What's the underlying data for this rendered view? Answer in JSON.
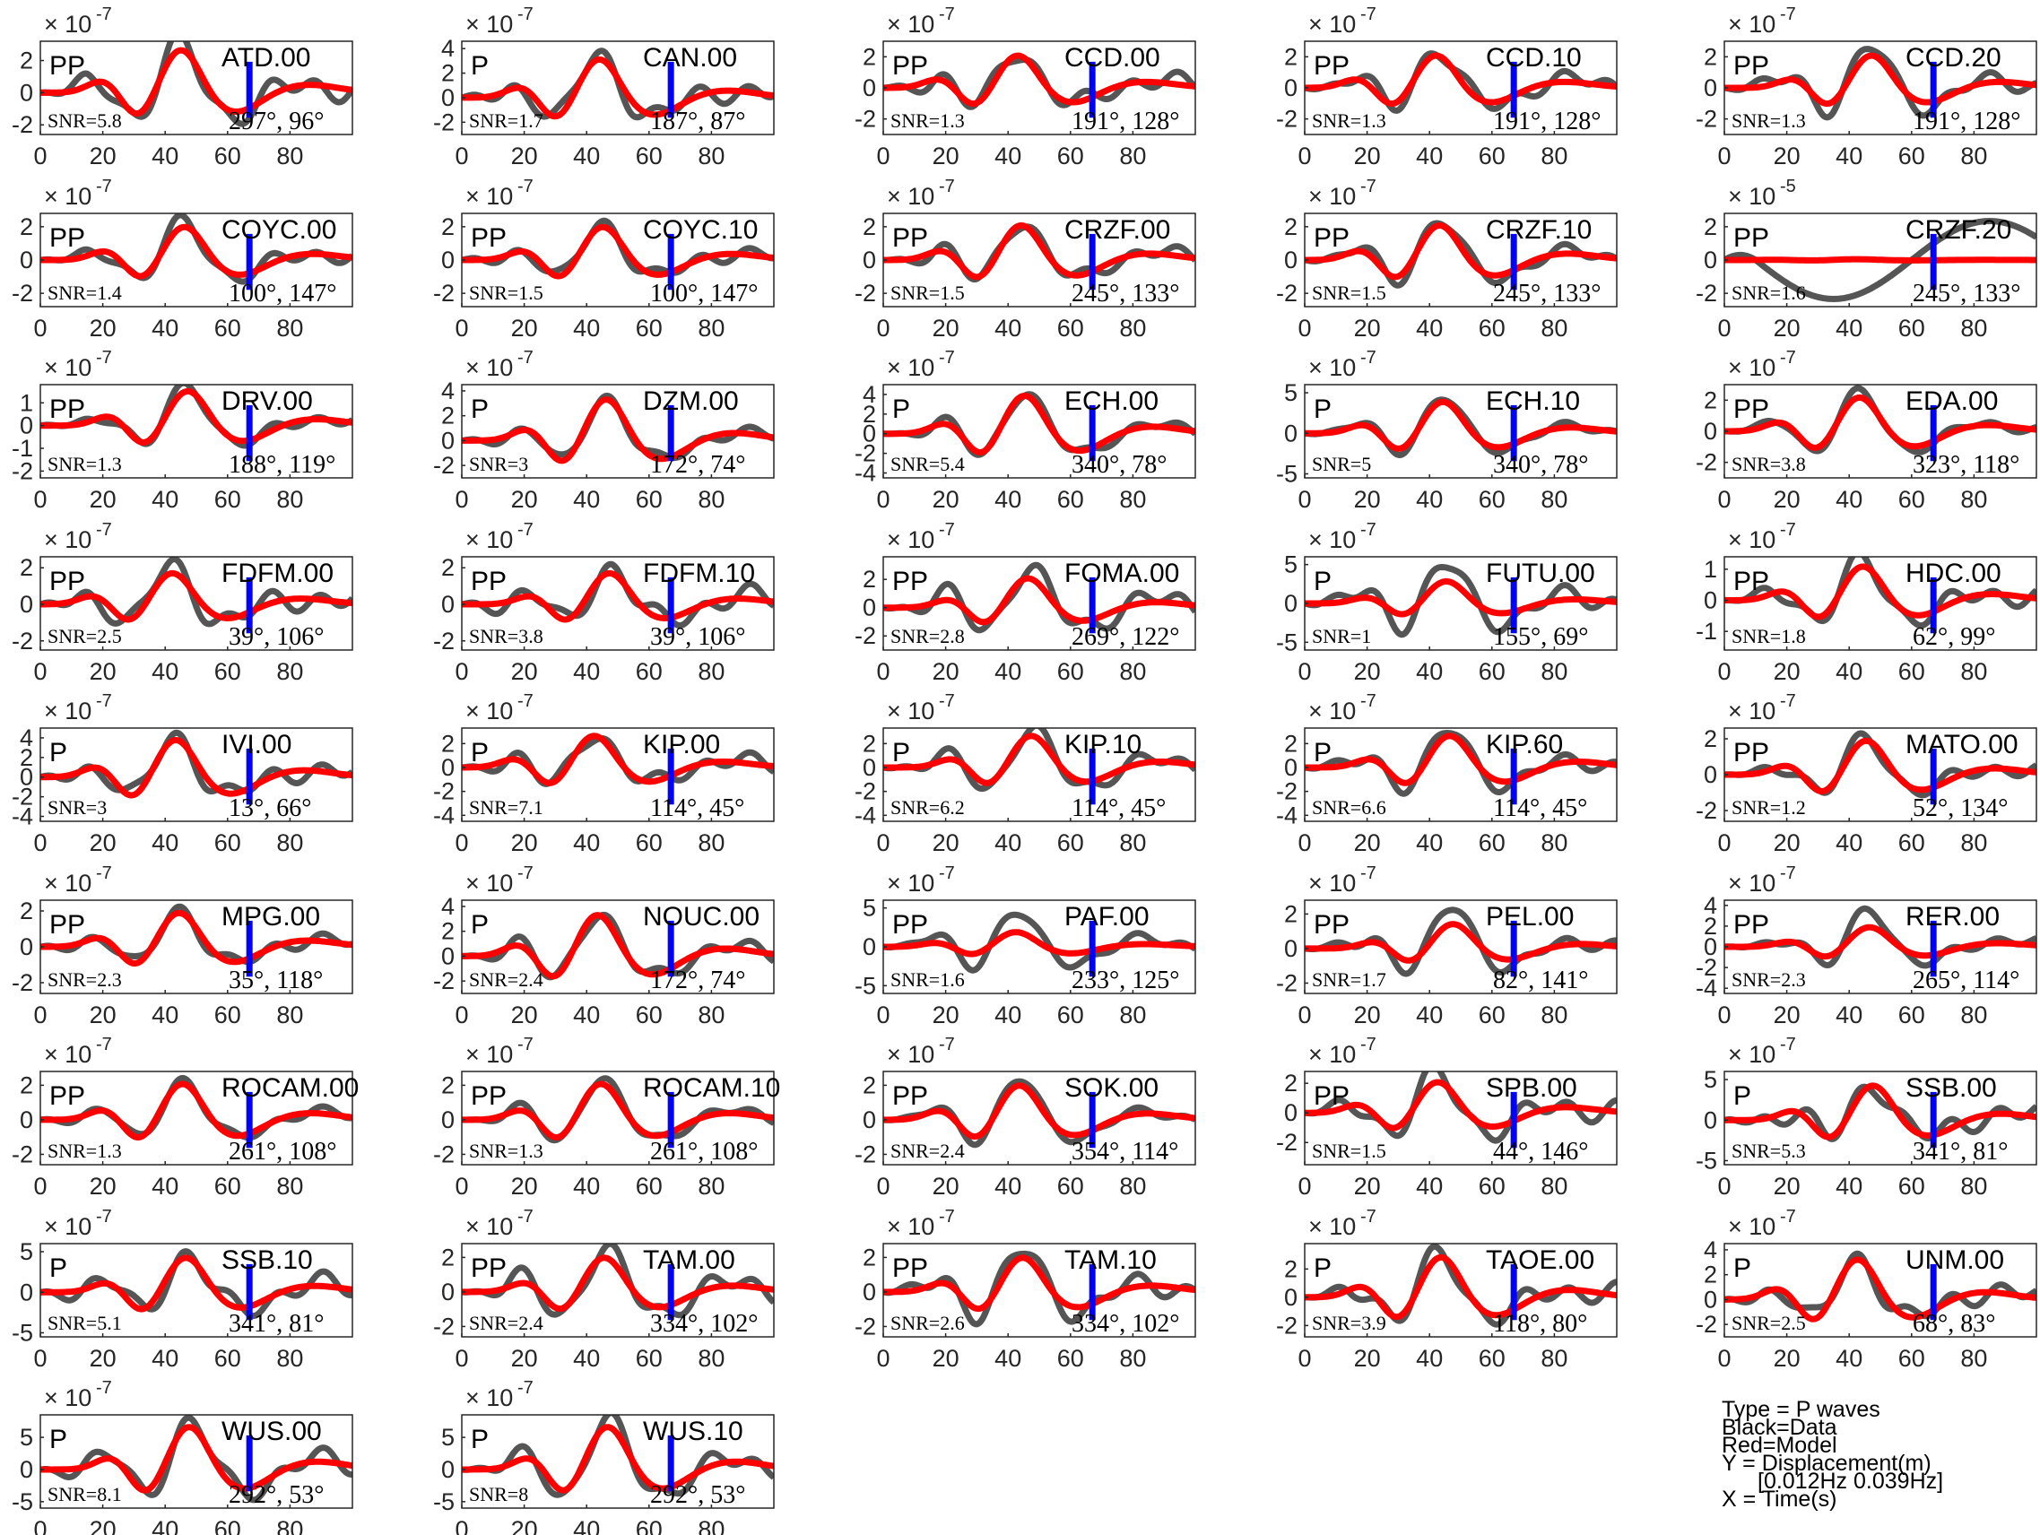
{
  "chart_data": {
    "type": "line",
    "grid": false,
    "xlim": [
      0,
      100
    ],
    "x_ticks": [
      0,
      20,
      40,
      60,
      80
    ],
    "pick_time_s": 67,
    "colors": {
      "data": "#555555",
      "model": "#ff0000",
      "pick": "#0000ff",
      "axes": "#262626"
    },
    "legend": {
      "type_label": "Type = P waves",
      "black_label": "Black=Data",
      "red_label": "Red=Model",
      "y_label": "Y = Displacement(m)",
      "band_label": "[0.012Hz 0.039Hz]",
      "x_label": "X = Time(s)"
    },
    "panels": [
      {
        "station": "ATD.00",
        "phase": "PP",
        "snr": "SNR=5.8",
        "angles": "297°, 96°",
        "exponent_base": "× 10",
        "exponent_power": "-7",
        "y_ticks": [
          -2,
          0,
          2
        ],
        "ylim": [
          -2.6,
          3.2
        ],
        "seed": 1,
        "data_amp": 2.9,
        "model_amp": 2.8
      },
      {
        "station": "CAN.00",
        "phase": "P",
        "snr": "SNR=1.7",
        "angles": "187°, 87°",
        "exponent_base": "× 10",
        "exponent_power": "-7",
        "y_ticks": [
          -2,
          0,
          2,
          4
        ],
        "ylim": [
          -3,
          4.6
        ],
        "seed": 2,
        "data_amp": 3.5,
        "model_amp": 3.3
      },
      {
        "station": "CCD.00",
        "phase": "PP",
        "snr": "SNR=1.3",
        "angles": "191°, 128°",
        "exponent_base": "× 10",
        "exponent_power": "-7",
        "y_ticks": [
          -2,
          0,
          2
        ],
        "ylim": [
          -3,
          3
        ],
        "seed": 3,
        "data_amp": 2.5,
        "model_amp": 2.2
      },
      {
        "station": "CCD.10",
        "phase": "PP",
        "snr": "SNR=1.3",
        "angles": "191°, 128°",
        "exponent_base": "× 10",
        "exponent_power": "-7",
        "y_ticks": [
          -2,
          0,
          2
        ],
        "ylim": [
          -3,
          3
        ],
        "seed": 4,
        "data_amp": 2.5,
        "model_amp": 2.2
      },
      {
        "station": "CCD.20",
        "phase": "PP",
        "snr": "SNR=1.3",
        "angles": "191°, 128°",
        "exponent_base": "× 10",
        "exponent_power": "-7",
        "y_ticks": [
          -2,
          0,
          2
        ],
        "ylim": [
          -3,
          3
        ],
        "seed": 5,
        "data_amp": 2.5,
        "model_amp": 2.2
      },
      {
        "station": "COYC.00",
        "phase": "PP",
        "snr": "SNR=1.4",
        "angles": "100°, 147°",
        "exponent_base": "× 10",
        "exponent_power": "-7",
        "y_ticks": [
          -2,
          0,
          2
        ],
        "ylim": [
          -2.8,
          2.8
        ],
        "seed": 6,
        "data_amp": 2.3,
        "model_amp": 2.1
      },
      {
        "station": "COYC.10",
        "phase": "PP",
        "snr": "SNR=1.5",
        "angles": "100°, 147°",
        "exponent_base": "× 10",
        "exponent_power": "-7",
        "y_ticks": [
          -2,
          0,
          2
        ],
        "ylim": [
          -2.8,
          2.8
        ],
        "seed": 7,
        "data_amp": 2.3,
        "model_amp": 2.1
      },
      {
        "station": "CRZF.00",
        "phase": "PP",
        "snr": "SNR=1.5",
        "angles": "245°, 133°",
        "exponent_base": "× 10",
        "exponent_power": "-7",
        "y_ticks": [
          -2,
          0,
          2
        ],
        "ylim": [
          -2.8,
          2.8
        ],
        "seed": 8,
        "data_amp": 2.4,
        "model_amp": 2.2
      },
      {
        "station": "CRZF.10",
        "phase": "PP",
        "snr": "SNR=1.5",
        "angles": "245°, 133°",
        "exponent_base": "× 10",
        "exponent_power": "-7",
        "y_ticks": [
          -2,
          0,
          2
        ],
        "ylim": [
          -2.8,
          2.8
        ],
        "seed": 9,
        "data_amp": 2.4,
        "model_amp": 2.2
      },
      {
        "station": "CRZF.20",
        "phase": "PP",
        "snr": "SNR=1.6",
        "angles": "245°, 133°",
        "exponent_base": "× 10",
        "exponent_power": "-5",
        "y_ticks": [
          -2,
          0,
          2
        ],
        "ylim": [
          -2.8,
          2.8
        ],
        "seed": 10,
        "data_amp": 2.6,
        "model_amp": 0.05
      },
      {
        "station": "DRV.00",
        "phase": "PP",
        "snr": "SNR=1.3",
        "angles": "188°, 119°",
        "exponent_base": "× 10",
        "exponent_power": "-7",
        "y_ticks": [
          -2,
          -1,
          0,
          1
        ],
        "ylim": [
          -2.3,
          1.8
        ],
        "seed": 11,
        "data_amp": 1.8,
        "model_amp": 1.6
      },
      {
        "station": "DZM.00",
        "phase": "P",
        "snr": "SNR=3",
        "angles": "172°, 74°",
        "exponent_base": "× 10",
        "exponent_power": "-7",
        "y_ticks": [
          -2,
          0,
          2,
          4
        ],
        "ylim": [
          -3,
          4.5
        ],
        "seed": 12,
        "data_amp": 3.6,
        "model_amp": 3.5
      },
      {
        "station": "ECH.00",
        "phase": "P",
        "snr": "SNR=5.4",
        "angles": "340°, 78°",
        "exponent_base": "× 10",
        "exponent_power": "-7",
        "y_ticks": [
          -4,
          -2,
          0,
          2,
          4
        ],
        "ylim": [
          -4.5,
          5
        ],
        "seed": 13,
        "data_amp": 4.3,
        "model_amp": 4.1
      },
      {
        "station": "ECH.10",
        "phase": "P",
        "snr": "SNR=5",
        "angles": "340°, 78°",
        "exponent_base": "× 10",
        "exponent_power": "-7",
        "y_ticks": [
          -5,
          0,
          5
        ],
        "ylim": [
          -5.5,
          6
        ],
        "seed": 14,
        "data_amp": 4.3,
        "model_amp": 4.1
      },
      {
        "station": "EDA.00",
        "phase": "PP",
        "snr": "SNR=3.8",
        "angles": "323°, 118°",
        "exponent_base": "× 10",
        "exponent_power": "-7",
        "y_ticks": [
          -2,
          0,
          2
        ],
        "ylim": [
          -3,
          3
        ],
        "seed": 15,
        "data_amp": 2.5,
        "model_amp": 2.3
      },
      {
        "station": "FDFM.00",
        "phase": "PP",
        "snr": "SNR=2.5",
        "angles": "39°, 106°",
        "exponent_base": "× 10",
        "exponent_power": "-7",
        "y_ticks": [
          -2,
          0,
          2
        ],
        "ylim": [
          -2.5,
          2.6
        ],
        "seed": 16,
        "data_amp": 2.1,
        "model_amp": 1.8
      },
      {
        "station": "FDFM.10",
        "phase": "PP",
        "snr": "SNR=3.8",
        "angles": "39°, 106°",
        "exponent_base": "× 10",
        "exponent_power": "-7",
        "y_ticks": [
          -2,
          0,
          2
        ],
        "ylim": [
          -2.5,
          2.6
        ],
        "seed": 17,
        "data_amp": 2.1,
        "model_amp": 1.8
      },
      {
        "station": "FOMA.00",
        "phase": "PP",
        "snr": "SNR=2.8",
        "angles": "269°, 122°",
        "exponent_base": "× 10",
        "exponent_power": "-7",
        "y_ticks": [
          -2,
          0,
          2
        ],
        "ylim": [
          -3,
          3.6
        ],
        "seed": 18,
        "data_amp": 2.7,
        "model_amp": 2.2
      },
      {
        "station": "FUTU.00",
        "phase": "P",
        "snr": "SNR=1",
        "angles": "155°, 69°",
        "exponent_base": "× 10",
        "exponent_power": "-7",
        "y_ticks": [
          -5,
          0,
          5
        ],
        "ylim": [
          -6,
          6
        ],
        "seed": 19,
        "data_amp": 4.8,
        "model_amp": 3.0
      },
      {
        "station": "HDC.00",
        "phase": "PP",
        "snr": "SNR=1.8",
        "angles": "62°, 99°",
        "exponent_base": "× 10",
        "exponent_power": "-7",
        "y_ticks": [
          -1,
          0,
          1
        ],
        "ylim": [
          -1.6,
          1.4
        ],
        "seed": 20,
        "data_amp": 1.25,
        "model_amp": 1.15
      },
      {
        "station": "IVI.00",
        "phase": "P",
        "snr": "SNR=3",
        "angles": "13°, 66°",
        "exponent_base": "× 10",
        "exponent_power": "-7",
        "y_ticks": [
          -4,
          -2,
          0,
          2,
          4
        ],
        "ylim": [
          -4.5,
          5
        ],
        "seed": 21,
        "data_amp": 4.2,
        "model_amp": 4.0
      },
      {
        "station": "KIP.00",
        "phase": "P",
        "snr": "SNR=7.1",
        "angles": "114°, 45°",
        "exponent_base": "× 10",
        "exponent_power": "-7",
        "y_ticks": [
          -4,
          -2,
          0,
          2
        ],
        "ylim": [
          -4.5,
          3.3
        ],
        "seed": 22,
        "data_amp": 3.0,
        "model_amp": 2.8
      },
      {
        "station": "KIP.10",
        "phase": "P",
        "snr": "SNR=6.2",
        "angles": "114°, 45°",
        "exponent_base": "× 10",
        "exponent_power": "-7",
        "y_ticks": [
          -4,
          -2,
          0,
          2
        ],
        "ylim": [
          -4.5,
          3.3
        ],
        "seed": 23,
        "data_amp": 3.0,
        "model_amp": 2.8
      },
      {
        "station": "KIP.60",
        "phase": "P",
        "snr": "SNR=6.6",
        "angles": "114°, 45°",
        "exponent_base": "× 10",
        "exponent_power": "-7",
        "y_ticks": [
          -4,
          -2,
          0,
          2
        ],
        "ylim": [
          -4.5,
          3.3
        ],
        "seed": 24,
        "data_amp": 3.0,
        "model_amp": 2.8
      },
      {
        "station": "MATO.00",
        "phase": "PP",
        "snr": "SNR=1.2",
        "angles": "52°, 134°",
        "exponent_base": "× 10",
        "exponent_power": "-7",
        "y_ticks": [
          -2,
          0,
          2
        ],
        "ylim": [
          -2.6,
          2.6
        ],
        "seed": 25,
        "data_amp": 2.1,
        "model_amp": 2.0
      },
      {
        "station": "MPG.00",
        "phase": "PP",
        "snr": "SNR=2.3",
        "angles": "35°, 118°",
        "exponent_base": "× 10",
        "exponent_power": "-7",
        "y_ticks": [
          -2,
          0,
          2
        ],
        "ylim": [
          -2.6,
          2.6
        ],
        "seed": 26,
        "data_amp": 2.2,
        "model_amp": 2.0
      },
      {
        "station": "NOUC.00",
        "phase": "P",
        "snr": "SNR=2.4",
        "angles": "172°, 74°",
        "exponent_base": "× 10",
        "exponent_power": "-7",
        "y_ticks": [
          -2,
          0,
          2,
          4
        ],
        "ylim": [
          -3,
          4.5
        ],
        "seed": 27,
        "data_amp": 3.6,
        "model_amp": 3.5
      },
      {
        "station": "PAF.00",
        "phase": "PP",
        "snr": "SNR=1.6",
        "angles": "233°, 125°",
        "exponent_base": "× 10",
        "exponent_power": "-7",
        "y_ticks": [
          -5,
          0,
          5
        ],
        "ylim": [
          -6,
          6
        ],
        "seed": 28,
        "data_amp": 4.5,
        "model_amp": 2.0
      },
      {
        "station": "PEL.00",
        "phase": "PP",
        "snr": "SNR=1.7",
        "angles": "82°, 141°",
        "exponent_base": "× 10",
        "exponent_power": "-7",
        "y_ticks": [
          -2,
          0,
          2
        ],
        "ylim": [
          -2.6,
          2.8
        ],
        "seed": 29,
        "data_amp": 2.4,
        "model_amp": 1.5
      },
      {
        "station": "RER.00",
        "phase": "PP",
        "snr": "SNR=2.3",
        "angles": "265°, 114°",
        "exponent_base": "× 10",
        "exponent_power": "-7",
        "y_ticks": [
          -4,
          -2,
          0,
          2,
          4
        ],
        "ylim": [
          -4.5,
          4.5
        ],
        "seed": 30,
        "data_amp": 3.8,
        "model_amp": 2.0
      },
      {
        "station": "ROCAM.00",
        "phase": "PP",
        "snr": "SNR=1.3",
        "angles": "261°, 108°",
        "exponent_base": "× 10",
        "exponent_power": "-7",
        "y_ticks": [
          -2,
          0,
          2
        ],
        "ylim": [
          -2.6,
          2.8
        ],
        "seed": 31,
        "data_amp": 2.4,
        "model_amp": 2.2
      },
      {
        "station": "ROCAM.10",
        "phase": "PP",
        "snr": "SNR=1.3",
        "angles": "261°, 108°",
        "exponent_base": "× 10",
        "exponent_power": "-7",
        "y_ticks": [
          -2,
          0,
          2
        ],
        "ylim": [
          -2.6,
          2.8
        ],
        "seed": 32,
        "data_amp": 2.4,
        "model_amp": 2.2
      },
      {
        "station": "SOK.00",
        "phase": "PP",
        "snr": "SNR=2.4",
        "angles": "354°, 114°",
        "exponent_base": "× 10",
        "exponent_power": "-7",
        "y_ticks": [
          -2,
          0,
          2
        ],
        "ylim": [
          -2.6,
          2.8
        ],
        "seed": 33,
        "data_amp": 2.3,
        "model_amp": 2.1
      },
      {
        "station": "SPB.00",
        "phase": "PP",
        "snr": "SNR=1.5",
        "angles": "44°, 146°",
        "exponent_base": "× 10",
        "exponent_power": "-7",
        "y_ticks": [
          -2,
          0,
          2
        ],
        "ylim": [
          -3.5,
          2.8
        ],
        "seed": 34,
        "data_amp": 2.5,
        "model_amp": 2.2
      },
      {
        "station": "SSB.00",
        "phase": "P",
        "snr": "SNR=5.3",
        "angles": "341°, 81°",
        "exponent_base": "× 10",
        "exponent_power": "-7",
        "y_ticks": [
          -5,
          0,
          5
        ],
        "ylim": [
          -5.5,
          6
        ],
        "seed": 35,
        "data_amp": 4.7,
        "model_amp": 4.5
      },
      {
        "station": "SSB.10",
        "phase": "P",
        "snr": "SNR=5.1",
        "angles": "341°, 81°",
        "exponent_base": "× 10",
        "exponent_power": "-7",
        "y_ticks": [
          -5,
          0,
          5
        ],
        "ylim": [
          -5.5,
          6
        ],
        "seed": 36,
        "data_amp": 4.7,
        "model_amp": 4.5
      },
      {
        "station": "TAM.00",
        "phase": "PP",
        "snr": "SNR=2.4",
        "angles": "334°, 102°",
        "exponent_base": "× 10",
        "exponent_power": "-7",
        "y_ticks": [
          -2,
          0,
          2
        ],
        "ylim": [
          -2.6,
          2.8
        ],
        "seed": 37,
        "data_amp": 2.3,
        "model_amp": 2.1
      },
      {
        "station": "TAM.10",
        "phase": "PP",
        "snr": "SNR=2.6",
        "angles": "334°, 102°",
        "exponent_base": "× 10",
        "exponent_power": "-7",
        "y_ticks": [
          -2,
          0,
          2
        ],
        "ylim": [
          -2.6,
          2.8
        ],
        "seed": 38,
        "data_amp": 2.3,
        "model_amp": 2.1
      },
      {
        "station": "TAOE.00",
        "phase": "P",
        "snr": "SNR=3.9",
        "angles": "118°, 80°",
        "exponent_base": "× 10",
        "exponent_power": "-7",
        "y_ticks": [
          -2,
          0,
          2
        ],
        "ylim": [
          -2.8,
          3.8
        ],
        "seed": 39,
        "data_amp": 3.1,
        "model_amp": 3.0
      },
      {
        "station": "UNM.00",
        "phase": "P",
        "snr": "SNR=2.5",
        "angles": "68°, 83°",
        "exponent_base": "× 10",
        "exponent_power": "-7",
        "y_ticks": [
          -2,
          0,
          2,
          4
        ],
        "ylim": [
          -3,
          4.5
        ],
        "seed": 40,
        "data_amp": 3.5,
        "model_amp": 3.4
      },
      {
        "station": "WUS.00",
        "phase": "P",
        "snr": "SNR=8.1",
        "angles": "292°, 53°",
        "exponent_base": "× 10",
        "exponent_power": "-7",
        "y_ticks": [
          -5,
          0,
          5
        ],
        "ylim": [
          -6,
          8.5
        ],
        "seed": 41,
        "data_amp": 7.2,
        "model_amp": 7.0
      },
      {
        "station": "WUS.10",
        "phase": "P",
        "snr": "SNR=8",
        "angles": "292°, 53°",
        "exponent_base": "× 10",
        "exponent_power": "-7",
        "y_ticks": [
          -5,
          0,
          5
        ],
        "ylim": [
          -6,
          8.5
        ],
        "seed": 42,
        "data_amp": 7.2,
        "model_amp": 7.0
      }
    ]
  }
}
